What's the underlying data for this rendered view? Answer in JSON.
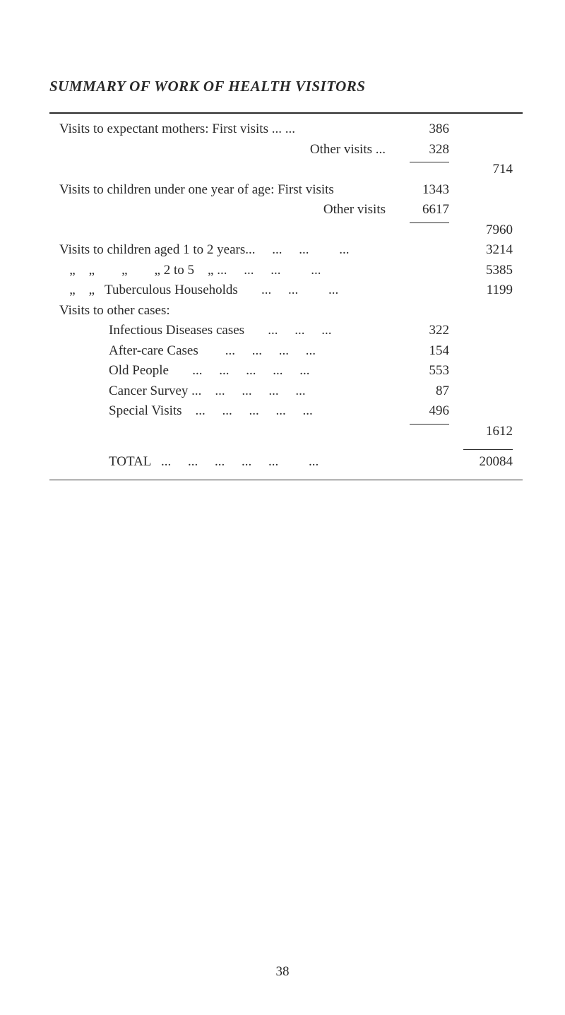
{
  "title": "SUMMARY OF WORK OF HEALTH VISITORS",
  "rows": {
    "r1_label": "Visits to expectant mothers: First visits ...     ...",
    "r1_sub": "386",
    "r2_label": "Other visits    ...",
    "r2_sub": "328",
    "r2_tot": "714",
    "r3_label": "Visits to children under one year of age: First visits",
    "r3_sub": "1343",
    "r4_label": "Other visits",
    "r4_sub": "6617",
    "r4_tot": "7960",
    "r5_label": "Visits to children aged 1 to 2 years...     ...     ...         ...",
    "r5_tot": "3214",
    "r6_label": "   „    „        „        „ 2 to 5    „ ...     ...     ...         ...",
    "r6_tot": "5385",
    "r7_label": "   „    „   Tuberculous Households       ...     ...         ...",
    "r7_tot": "1199",
    "r8_label": "Visits to other cases:",
    "r9_label": "Infectious Diseases cases       ...     ...     ...",
    "r9_sub": "322",
    "r10_label": "After-care Cases        ...     ...     ...     ...",
    "r10_sub": "154",
    "r11_label": "Old People       ...     ...     ...     ...     ...",
    "r11_sub": "553",
    "r12_label": "Cancer Survey ...    ...     ...     ...     ...",
    "r12_sub": "87",
    "r13_label": "Special Visits    ...     ...     ...     ...     ...",
    "r13_sub": "496",
    "r13_tot": "1612",
    "total_label": "TOTAL   ...     ...     ...     ...     ...         ...",
    "total_val": "20084"
  },
  "page_number": "38"
}
